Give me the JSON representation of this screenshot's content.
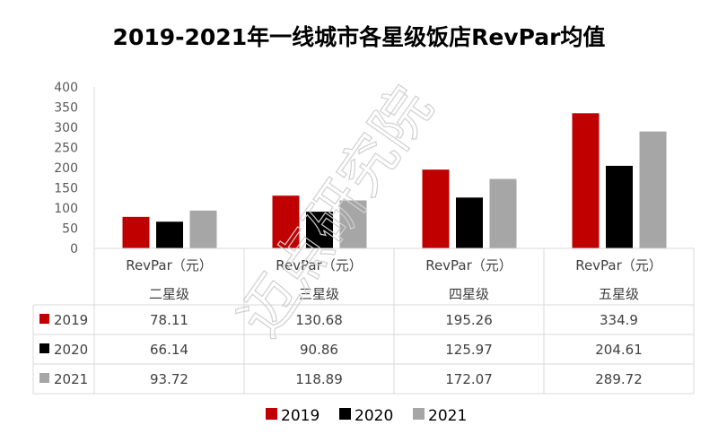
{
  "chart_data": {
    "type": "bar",
    "title": "2019-2021年一线城市各星级饭店RevPar均值",
    "categories": [
      "二星级",
      "三星级",
      "四星级",
      "五星级"
    ],
    "category_header": "RevPar（元）",
    "series": [
      {
        "name": "2019",
        "color": "#C00000",
        "values": [
          78.11,
          130.68,
          195.26,
          334.9
        ],
        "labels": [
          "78.11",
          "130.68",
          "195.26",
          "334.9"
        ]
      },
      {
        "name": "2020",
        "color": "#000000",
        "values": [
          66.14,
          90.86,
          125.97,
          204.61
        ],
        "labels": [
          "66.14",
          "90.86",
          "125.97",
          "204.61"
        ]
      },
      {
        "name": "2021",
        "color": "#A6A6A6",
        "values": [
          93.72,
          118.89,
          172.07,
          289.72
        ],
        "labels": [
          "93.72",
          "118.89",
          "172.07",
          "289.72"
        ]
      }
    ],
    "ylim": [
      0,
      400
    ],
    "yticks": [
      "0",
      "50",
      "100",
      "150",
      "200",
      "250",
      "300",
      "350",
      "400"
    ],
    "legend": "bottom",
    "data_table": true
  },
  "watermark": "迈点研究院"
}
